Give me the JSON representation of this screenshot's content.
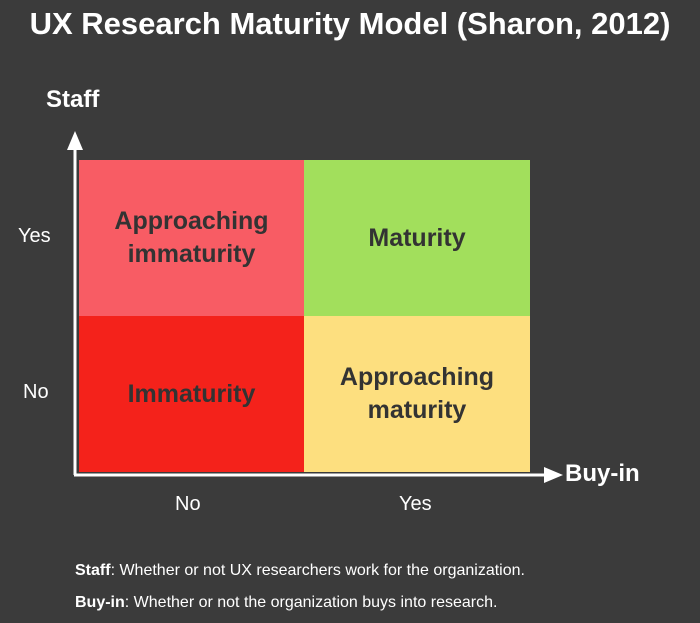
{
  "title": "UX Research Maturity Model (Sharon, 2012)",
  "axes": {
    "y_title": "Staff",
    "x_title": "Buy-in",
    "y_ticks": [
      "Yes",
      "No"
    ],
    "x_ticks": [
      "No",
      "Yes"
    ]
  },
  "quadrants": {
    "top_left": {
      "lines": [
        "Approaching",
        "immaturity"
      ],
      "color": "#f85c64"
    },
    "top_right": {
      "lines": [
        "Maturity"
      ],
      "color": "#a2df5c"
    },
    "bottom_left": {
      "lines": [
        "Immaturity"
      ],
      "color": "#f4221b"
    },
    "bottom_right": {
      "lines": [
        "Approaching",
        "maturity"
      ],
      "color": "#fddf7f"
    }
  },
  "legend": {
    "staff_term": "Staff",
    "staff_text": ": Whether or not UX researchers work for the organization.",
    "buyin_term": "Buy-in",
    "buyin_text": ": Whether or not the organization buys into research."
  },
  "colors": {
    "background": "#3b3b3b",
    "axis": "#ffffff",
    "quadrant_text": "#333333"
  }
}
